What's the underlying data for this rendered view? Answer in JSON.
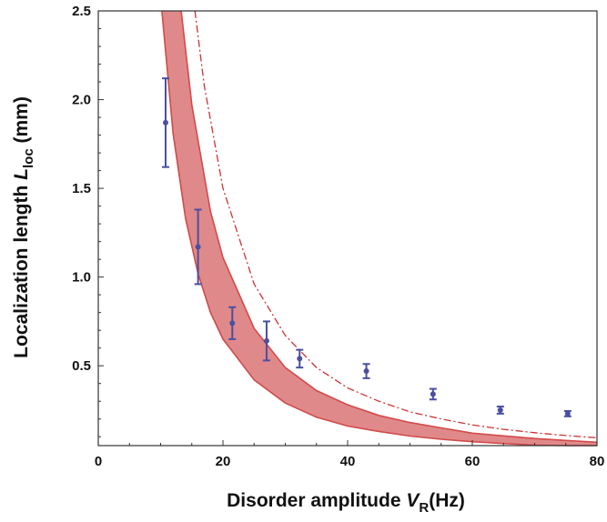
{
  "chart_data": {
    "type": "scatter",
    "xlabel": {
      "text": "Disorder amplitude ",
      "var": "V",
      "sub": "R",
      "unit": "(Hz)"
    },
    "ylabel": {
      "text": "Localization length ",
      "var": "L",
      "sub": "loc",
      "unit": " (mm)"
    },
    "xlim": [
      0,
      80
    ],
    "ylim": [
      0.05,
      2.5
    ],
    "x_ticks": [
      0,
      20,
      40,
      60,
      80
    ],
    "x_tick_labels": [
      "0",
      "20",
      "40",
      "60",
      "80"
    ],
    "y_ticks": [
      0.5,
      1.0,
      1.5,
      2.0,
      2.5
    ],
    "y_tick_labels": [
      "0.5",
      "1.0",
      "1.5",
      "2.0",
      "2.5"
    ],
    "grid": false,
    "legend": "none",
    "series": [
      {
        "kind": "points_with_error_bars",
        "color": "#4a4fa0",
        "points": [
          {
            "x": 10.8,
            "y": 1.87,
            "err": 0.25
          },
          {
            "x": 16.0,
            "y": 1.17,
            "err": 0.21
          },
          {
            "x": 21.5,
            "y": 0.74,
            "err": 0.09
          },
          {
            "x": 27.0,
            "y": 0.64,
            "err": 0.11
          },
          {
            "x": 32.3,
            "y": 0.54,
            "err": 0.05
          },
          {
            "x": 43.0,
            "y": 0.47,
            "err": 0.04
          },
          {
            "x": 53.7,
            "y": 0.34,
            "err": 0.03
          },
          {
            "x": 64.5,
            "y": 0.25,
            "err": 0.02
          },
          {
            "x": 75.3,
            "y": 0.23,
            "err": 0.015
          }
        ]
      },
      {
        "kind": "band",
        "color": "#d24a4a",
        "fill": "#e0898a",
        "upper": [
          [
            13.3,
            2.5
          ],
          [
            15,
            1.97
          ],
          [
            18,
            1.37
          ],
          [
            20,
            1.11
          ],
          [
            25,
            0.71
          ],
          [
            30,
            0.49
          ],
          [
            35,
            0.36
          ],
          [
            40,
            0.28
          ],
          [
            45,
            0.22
          ],
          [
            50,
            0.18
          ],
          [
            55,
            0.15
          ],
          [
            60,
            0.12
          ],
          [
            65,
            0.105
          ],
          [
            70,
            0.09
          ],
          [
            75,
            0.079
          ],
          [
            80,
            0.069
          ]
        ],
        "lower": [
          [
            10.2,
            2.5
          ],
          [
            12,
            1.81
          ],
          [
            14,
            1.33
          ],
          [
            16,
            1.02
          ],
          [
            18,
            0.8
          ],
          [
            20,
            0.65
          ],
          [
            25,
            0.42
          ],
          [
            30,
            0.29
          ],
          [
            35,
            0.21
          ],
          [
            40,
            0.16
          ],
          [
            45,
            0.13
          ],
          [
            50,
            0.104
          ],
          [
            55,
            0.086
          ],
          [
            60,
            0.072
          ],
          [
            65,
            0.062
          ],
          [
            70,
            0.053
          ],
          [
            75,
            0.046
          ],
          [
            80,
            0.04
          ]
        ]
      },
      {
        "kind": "dash_dot_line",
        "color": "#cc3333",
        "points": [
          [
            15.5,
            2.5
          ],
          [
            17,
            2.08
          ],
          [
            20,
            1.5
          ],
          [
            25,
            0.96
          ],
          [
            30,
            0.67
          ],
          [
            35,
            0.49
          ],
          [
            40,
            0.375
          ],
          [
            45,
            0.3
          ],
          [
            50,
            0.24
          ],
          [
            55,
            0.2
          ],
          [
            60,
            0.167
          ],
          [
            65,
            0.142
          ],
          [
            70,
            0.123
          ],
          [
            75,
            0.107
          ],
          [
            80,
            0.094
          ]
        ]
      }
    ]
  }
}
